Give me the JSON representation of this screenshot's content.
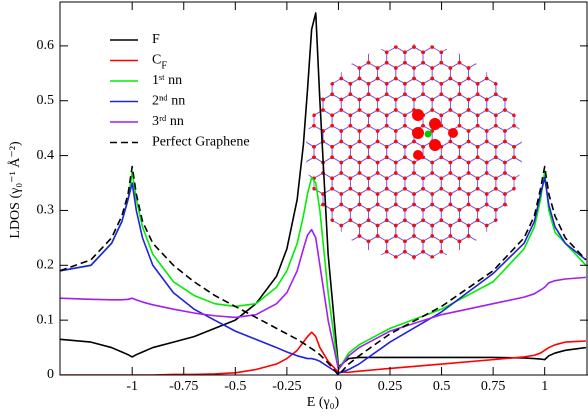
{
  "chart_data": {
    "type": "line",
    "xlabel": "E (γ₀)",
    "ylabel": "LDOS (γ₀⁻¹ Å⁻²)",
    "xlim": [
      -1.35,
      1.21
    ],
    "ylim": [
      0,
      0.68
    ],
    "xticks": [
      -1,
      -0.75,
      -0.5,
      -0.25,
      0,
      0.25,
      0.5,
      0.75,
      1
    ],
    "yticks": [
      0,
      0.1,
      0.2,
      0.3,
      0.4,
      0.5,
      0.6
    ],
    "legend": "upper left",
    "x": [
      -1.35,
      -1.2,
      -1.1,
      -1.05,
      -1.02,
      -1,
      -0.98,
      -0.95,
      -0.9,
      -0.8,
      -0.7,
      -0.6,
      -0.5,
      -0.4,
      -0.3,
      -0.25,
      -0.2,
      -0.17,
      -0.15,
      -0.13,
      -0.11,
      -0.09,
      -0.05,
      0,
      0.05,
      0.1,
      0.25,
      0.5,
      0.75,
      0.9,
      0.95,
      0.98,
      1,
      1.02,
      1.05,
      1.1,
      1.2
    ],
    "series": [
      {
        "name": "F",
        "color": "#000000",
        "dash": false,
        "values": [
          0.065,
          0.06,
          0.05,
          0.042,
          0.037,
          0.033,
          0.037,
          0.042,
          0.05,
          0.06,
          0.07,
          0.085,
          0.1,
          0.13,
          0.18,
          0.23,
          0.32,
          0.42,
          0.52,
          0.63,
          0.66,
          0.5,
          0.22,
          0.015,
          0.03,
          0.032,
          0.032,
          0.032,
          0.032,
          0.031,
          0.03,
          0.029,
          0.028,
          0.035,
          0.04,
          0.045,
          0.05
        ]
      },
      {
        "name": "C_F",
        "color": "#ff0000",
        "dash": false,
        "values": [
          0,
          0,
          0,
          0,
          0,
          0,
          0,
          0,
          0,
          0.001,
          0.001,
          0.002,
          0.004,
          0.01,
          0.02,
          0.03,
          0.045,
          0.06,
          0.07,
          0.078,
          0.07,
          0.05,
          0.025,
          0.005,
          0.005,
          0.007,
          0.012,
          0.02,
          0.028,
          0.033,
          0.036,
          0.04,
          0.045,
          0.05,
          0.055,
          0.06,
          0.062
        ]
      },
      {
        "name": "1ˢᵗ nn",
        "color": "#00ee00",
        "dash": false,
        "values": [
          0.19,
          0.2,
          0.24,
          0.28,
          0.32,
          0.37,
          0.32,
          0.27,
          0.22,
          0.17,
          0.145,
          0.13,
          0.125,
          0.13,
          0.16,
          0.19,
          0.24,
          0.29,
          0.33,
          0.36,
          0.35,
          0.3,
          0.15,
          0.01,
          0.04,
          0.055,
          0.085,
          0.12,
          0.17,
          0.23,
          0.27,
          0.32,
          0.37,
          0.3,
          0.26,
          0.24,
          0.2
        ]
      },
      {
        "name": "2ⁿᵈ nn",
        "color": "#2222dd",
        "dash": false,
        "values": [
          0.19,
          0.2,
          0.24,
          0.28,
          0.32,
          0.35,
          0.3,
          0.25,
          0.2,
          0.15,
          0.12,
          0.1,
          0.08,
          0.065,
          0.05,
          0.042,
          0.035,
          0.032,
          0.03,
          0.03,
          0.028,
          0.025,
          0.015,
          0.003,
          0.01,
          0.02,
          0.06,
          0.115,
          0.185,
          0.24,
          0.28,
          0.33,
          0.36,
          0.31,
          0.27,
          0.24,
          0.21
        ]
      },
      {
        "name": "3ʳᵈ nn",
        "color": "#a020f0",
        "dash": false,
        "values": [
          0.14,
          0.138,
          0.137,
          0.137,
          0.138,
          0.14,
          0.137,
          0.133,
          0.128,
          0.12,
          0.113,
          0.108,
          0.105,
          0.11,
          0.13,
          0.15,
          0.19,
          0.23,
          0.255,
          0.265,
          0.25,
          0.2,
          0.1,
          0.01,
          0.035,
          0.05,
          0.08,
          0.11,
          0.13,
          0.142,
          0.148,
          0.155,
          0.16,
          0.168,
          0.172,
          0.175,
          0.178
        ]
      },
      {
        "name": "Perfect Graphene",
        "color": "#000000",
        "dash": true,
        "values": [
          0.19,
          0.21,
          0.25,
          0.29,
          0.33,
          0.38,
          0.33,
          0.28,
          0.24,
          0.2,
          0.17,
          0.145,
          0.125,
          0.105,
          0.085,
          0.075,
          0.065,
          0.058,
          0.053,
          0.048,
          0.043,
          0.037,
          0.022,
          0,
          0.02,
          0.035,
          0.075,
          0.125,
          0.19,
          0.25,
          0.29,
          0.34,
          0.38,
          0.33,
          0.29,
          0.25,
          0.21
        ]
      }
    ]
  }
}
